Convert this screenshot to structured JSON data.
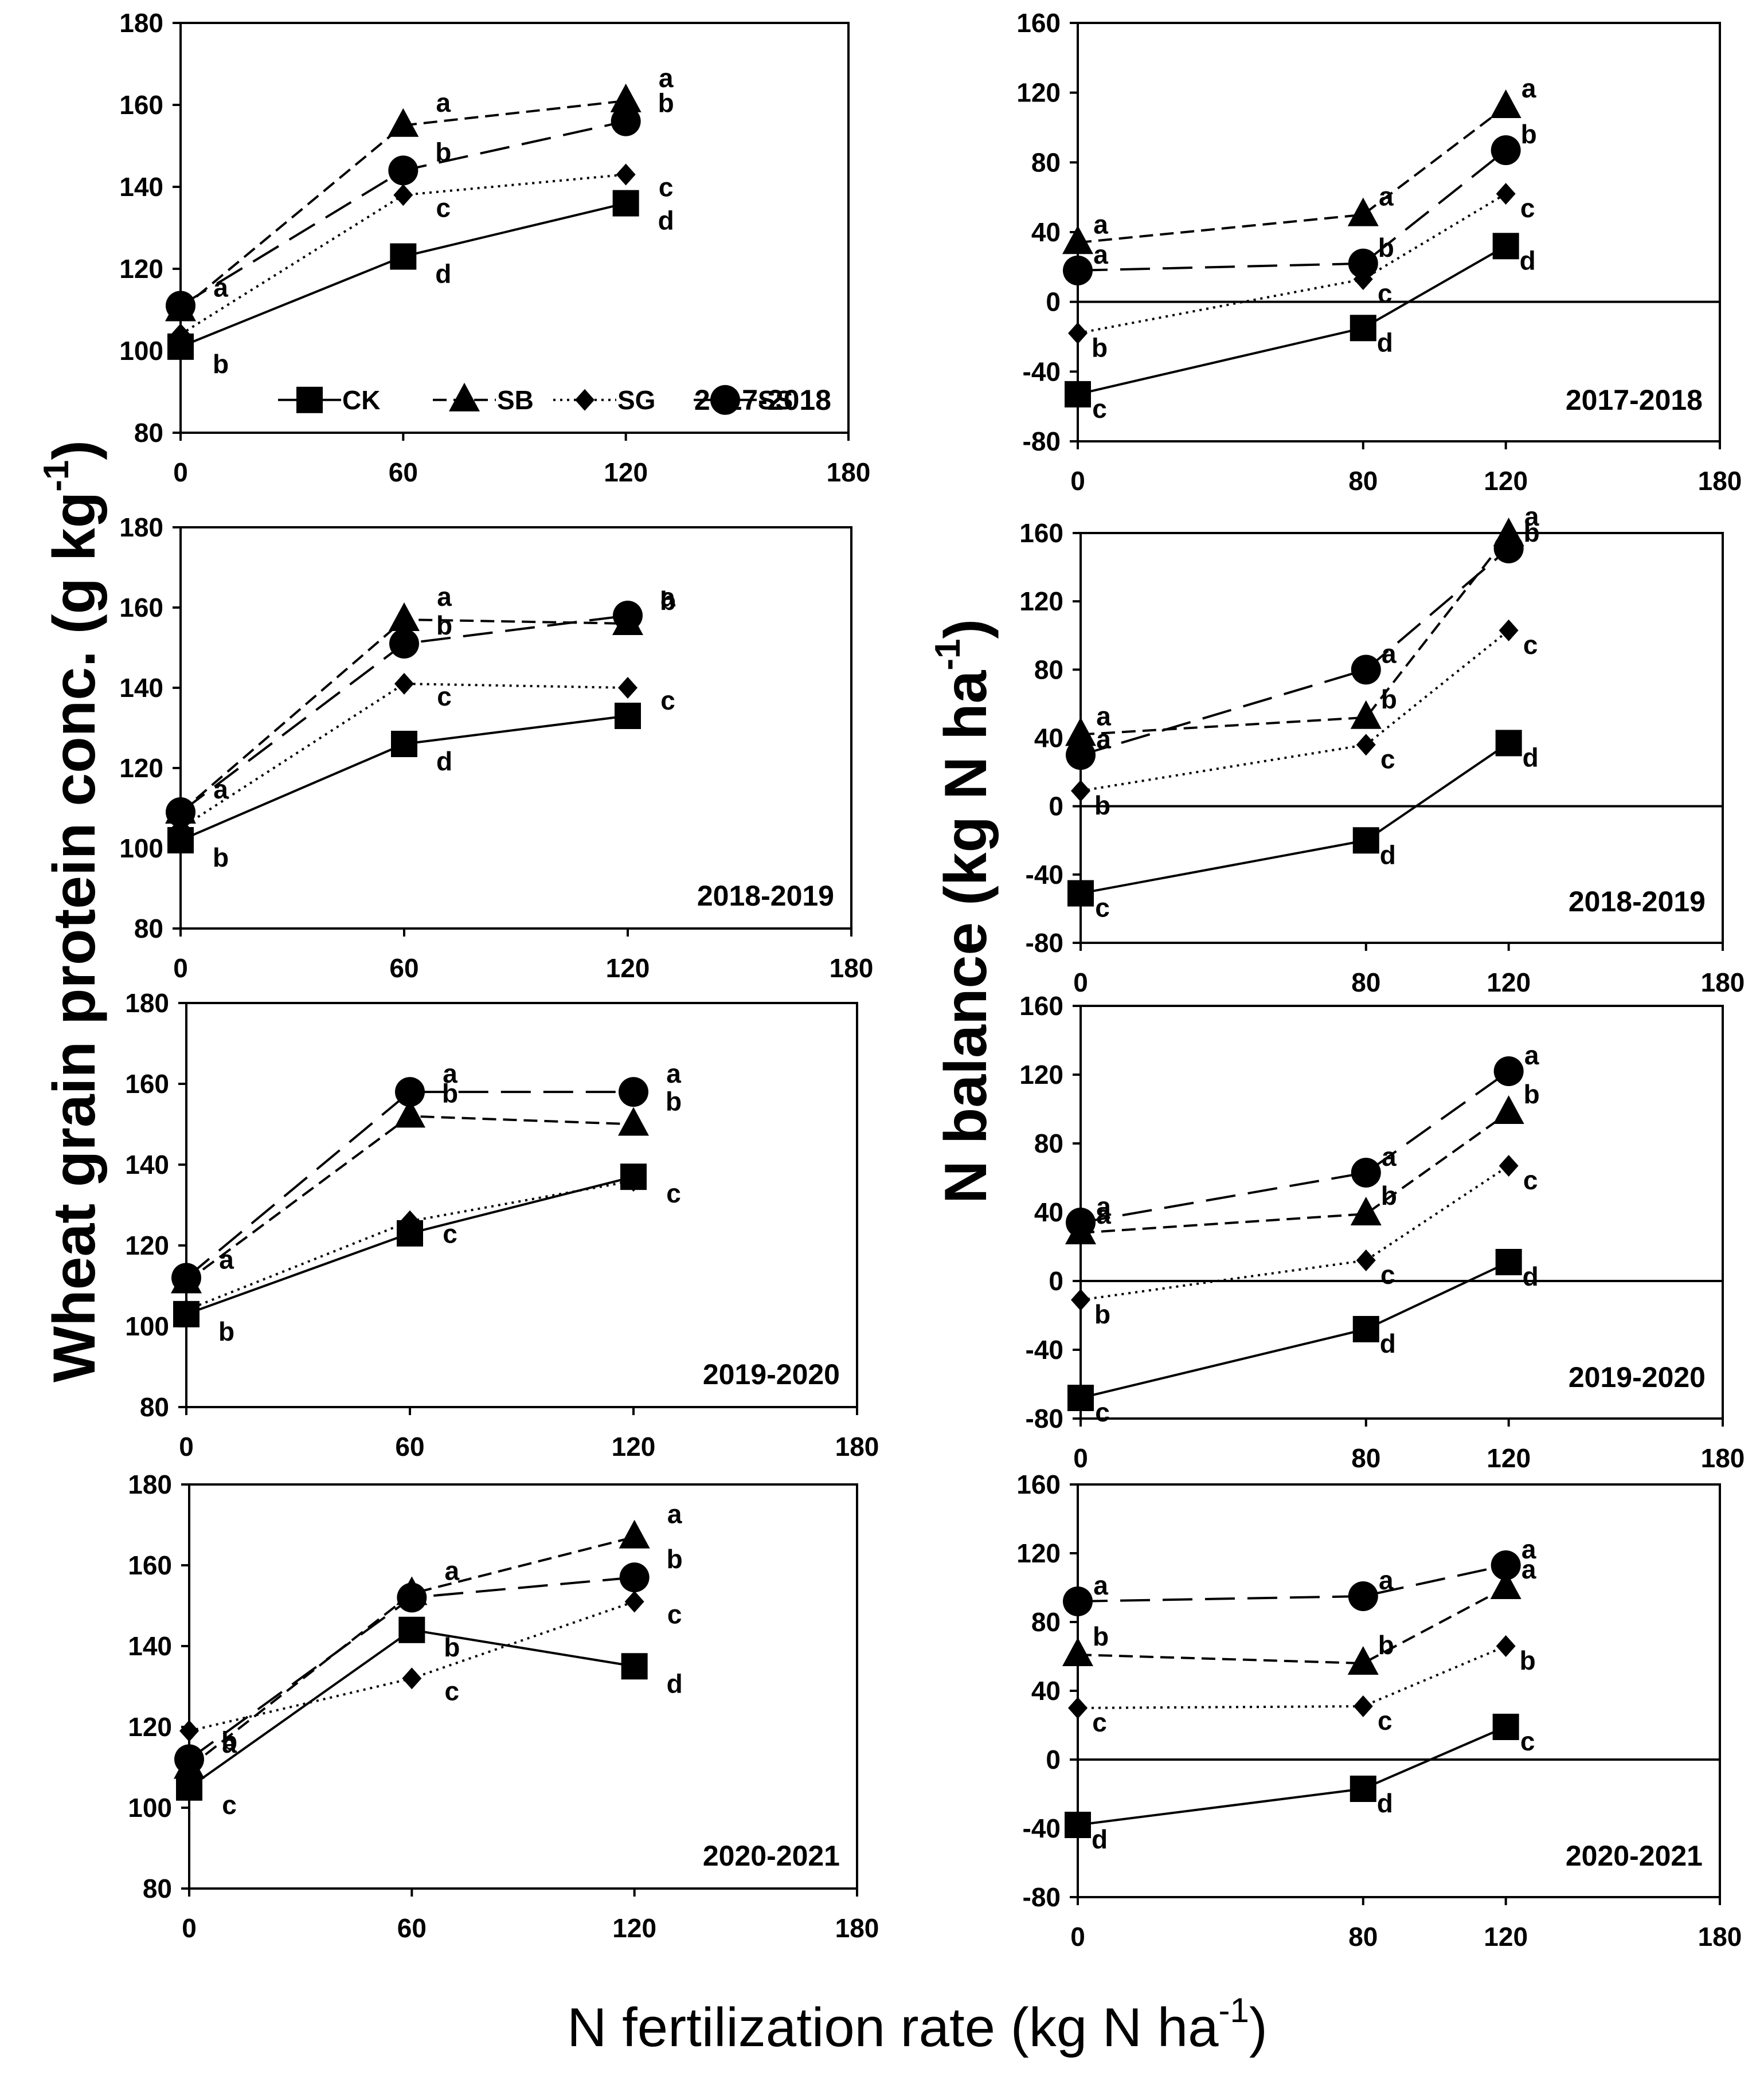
{
  "chart_data": {
    "type": "line",
    "ylabel_left": "Wheat grain protein conc. (g kg-1)",
    "ylabel_left_parts": {
      "main": "Wheat grain protein conc. (g kg",
      "sup": "-1",
      "end": ")"
    },
    "ylabel_right": "N balance (kg N ha-1)",
    "ylabel_right_parts": {
      "main": "N balance (kg N ha",
      "sup": "-1",
      "end": ")"
    },
    "xlabel": "N fertilization rate (kg N ha-1)",
    "xlabel_parts": {
      "main": "N fertilization rate (kg N ha",
      "sup": "-1",
      "end": ")"
    },
    "series_style": {
      "CK": {
        "marker": "square",
        "dash": "solid"
      },
      "SB": {
        "marker": "triangle",
        "dash": "short-dash"
      },
      "SG": {
        "marker": "diamond",
        "dash": "dotted"
      },
      "SS": {
        "marker": "circle",
        "dash": "long-dash"
      }
    },
    "legend": [
      "CK",
      "SB",
      "SG",
      "SS"
    ],
    "panels": [
      {
        "id": "protein-2017-2018",
        "year": "2017-2018",
        "kind": "protein",
        "x_ticks": [
          "0",
          "60",
          "120",
          "180"
        ],
        "x_tick_values": [
          0,
          60,
          120,
          180
        ],
        "xlim": [
          0,
          180
        ],
        "ylim": [
          80,
          180
        ],
        "y_ticks": [
          "80",
          "100",
          "120",
          "140",
          "160",
          "180"
        ],
        "x": [
          0,
          60,
          120
        ],
        "legend_shown": true,
        "series": [
          {
            "name": "CK",
            "values": [
              101,
              123,
              136
            ],
            "letters": [
              "b",
              "d",
              "d"
            ]
          },
          {
            "name": "SB",
            "values": [
              110,
              155,
              161
            ],
            "letters": [
              "",
              "a",
              "a"
            ]
          },
          {
            "name": "SG",
            "values": [
              104,
              138,
              143
            ],
            "letters": [
              "",
              "c",
              "c"
            ]
          },
          {
            "name": "SS",
            "values": [
              111,
              144,
              156
            ],
            "letters": [
              "a",
              "b",
              "b"
            ]
          }
        ]
      },
      {
        "id": "balance-2017-2018",
        "year": "2017-2018",
        "kind": "balance",
        "x_ticks": [
          "0",
          "80",
          "120",
          "180"
        ],
        "x_tick_values": [
          0,
          80,
          120,
          180
        ],
        "xlim": [
          0,
          180
        ],
        "ylim": [
          -80,
          160
        ],
        "y_ticks": [
          "-80",
          "-40",
          "0",
          "40",
          "80",
          "120",
          "160"
        ],
        "x": [
          0,
          80,
          120
        ],
        "series": [
          {
            "name": "CK",
            "values": [
              -53,
              -15,
              32
            ],
            "letters": [
              "c",
              "d",
              "d"
            ]
          },
          {
            "name": "SB",
            "values": [
              34,
              50,
              112
            ],
            "letters": [
              "a",
              "a",
              "a"
            ]
          },
          {
            "name": "SG",
            "values": [
              -18,
              13,
              62
            ],
            "letters": [
              "b",
              "c",
              "c"
            ]
          },
          {
            "name": "SS",
            "values": [
              18,
              22,
              87
            ],
            "letters": [
              "a",
              "b",
              "b"
            ]
          }
        ]
      },
      {
        "id": "protein-2018-2019",
        "year": "2018-2019",
        "kind": "protein",
        "x_ticks": [
          "0",
          "60",
          "120",
          "180"
        ],
        "x_tick_values": [
          0,
          60,
          120,
          180
        ],
        "xlim": [
          0,
          180
        ],
        "ylim": [
          80,
          180
        ],
        "y_ticks": [
          "80",
          "100",
          "120",
          "140",
          "160",
          "180"
        ],
        "x": [
          0,
          60,
          120
        ],
        "series": [
          {
            "name": "CK",
            "values": [
              102,
              126,
              133
            ],
            "letters": [
              "b",
              "d",
              ""
            ]
          },
          {
            "name": "SB",
            "values": [
              109,
              157,
              156
            ],
            "letters": [
              "a",
              "a",
              "b"
            ]
          },
          {
            "name": "SG",
            "values": [
              105,
              141,
              140
            ],
            "letters": [
              "",
              "c",
              "c"
            ]
          },
          {
            "name": "SS",
            "values": [
              109,
              151,
              158
            ],
            "letters": [
              "",
              "b",
              "a"
            ]
          }
        ]
      },
      {
        "id": "balance-2018-2019",
        "year": "2018-2019",
        "kind": "balance",
        "x_ticks": [
          "0",
          "80",
          "120",
          "180"
        ],
        "x_tick_values": [
          0,
          80,
          120,
          180
        ],
        "xlim": [
          0,
          180
        ],
        "ylim": [
          -80,
          160
        ],
        "y_ticks": [
          "-80",
          "-40",
          "0",
          "40",
          "80",
          "120",
          "160"
        ],
        "x": [
          0,
          80,
          120
        ],
        "series": [
          {
            "name": "CK",
            "values": [
              -51,
              -20,
              37
            ],
            "letters": [
              "c",
              "d",
              "d"
            ]
          },
          {
            "name": "SB",
            "values": [
              42,
              52,
              159
            ],
            "letters": [
              "a",
              "b",
              "a"
            ]
          },
          {
            "name": "SG",
            "values": [
              9,
              36,
              103
            ],
            "letters": [
              "b",
              "c",
              "c"
            ]
          },
          {
            "name": "SS",
            "values": [
              30,
              80,
              151
            ],
            "letters": [
              "a",
              "a",
              "b"
            ]
          }
        ]
      },
      {
        "id": "protein-2019-2020",
        "year": "2019-2020",
        "kind": "protein",
        "x_ticks": [
          "0",
          "60",
          "120",
          "180"
        ],
        "x_tick_values": [
          0,
          60,
          120,
          180
        ],
        "xlim": [
          0,
          180
        ],
        "ylim": [
          80,
          180
        ],
        "y_ticks": [
          "80",
          "100",
          "120",
          "140",
          "160",
          "180"
        ],
        "x": [
          0,
          60,
          120
        ],
        "series": [
          {
            "name": "CK",
            "values": [
              103,
              123,
              137
            ],
            "letters": [
              "b",
              "",
              ""
            ]
          },
          {
            "name": "SB",
            "values": [
              111,
              152,
              150
            ],
            "letters": [
              "",
              "b",
              "b"
            ]
          },
          {
            "name": "SG",
            "values": [
              104,
              126,
              136
            ],
            "letters": [
              "",
              "c",
              "c"
            ]
          },
          {
            "name": "SS",
            "values": [
              112,
              158,
              158
            ],
            "letters": [
              "a",
              "a",
              "a"
            ]
          }
        ]
      },
      {
        "id": "balance-2019-2020",
        "year": "2019-2020",
        "kind": "balance",
        "x_ticks": [
          "0",
          "80",
          "120",
          "180"
        ],
        "x_tick_values": [
          0,
          80,
          120,
          180
        ],
        "xlim": [
          0,
          180
        ],
        "ylim": [
          -80,
          160
        ],
        "y_ticks": [
          "-80",
          "-40",
          "0",
          "40",
          "80",
          "120",
          "160"
        ],
        "x": [
          0,
          80,
          120
        ],
        "series": [
          {
            "name": "CK",
            "values": [
              -68,
              -28,
              11
            ],
            "letters": [
              "c",
              "d",
              "d"
            ]
          },
          {
            "name": "SB",
            "values": [
              28,
              39,
              98
            ],
            "letters": [
              "a",
              "b",
              "b"
            ]
          },
          {
            "name": "SG",
            "values": [
              -11,
              12,
              67
            ],
            "letters": [
              "b",
              "c",
              "c"
            ]
          },
          {
            "name": "SS",
            "values": [
              34,
              63,
              122
            ],
            "letters": [
              "a",
              "a",
              "a"
            ]
          }
        ]
      },
      {
        "id": "protein-2020-2021",
        "year": "2020-2021",
        "kind": "protein",
        "x_ticks": [
          "0",
          "60",
          "120",
          "180"
        ],
        "x_tick_values": [
          0,
          60,
          120,
          180
        ],
        "xlim": [
          0,
          180
        ],
        "ylim": [
          80,
          180
        ],
        "y_ticks": [
          "80",
          "100",
          "120",
          "140",
          "160",
          "180"
        ],
        "x": [
          0,
          60,
          120
        ],
        "series": [
          {
            "name": "CK",
            "values": [
              105,
              144,
              135
            ],
            "letters": [
              "c",
              "b",
              "d"
            ]
          },
          {
            "name": "SB",
            "values": [
              110,
              153,
              167
            ],
            "letters": [
              "",
              "a",
              "a"
            ]
          },
          {
            "name": "SG",
            "values": [
              119,
              132,
              151
            ],
            "letters": [
              "a",
              "c",
              "c"
            ]
          },
          {
            "name": "SS",
            "values": [
              112,
              152,
              157
            ],
            "letters": [
              "b",
              "",
              "b"
            ]
          }
        ]
      },
      {
        "id": "balance-2020-2021",
        "year": "2020-2021",
        "kind": "balance",
        "x_ticks": [
          "0",
          "80",
          "120",
          "180"
        ],
        "x_tick_values": [
          0,
          80,
          120,
          180
        ],
        "xlim": [
          0,
          180
        ],
        "ylim": [
          -80,
          160
        ],
        "y_ticks": [
          "-80",
          "-40",
          "0",
          "40",
          "80",
          "120",
          "160"
        ],
        "x": [
          0,
          80,
          120
        ],
        "series": [
          {
            "name": "CK",
            "values": [
              -38,
              -17,
              19
            ],
            "letters": [
              "d",
              "d",
              "c"
            ]
          },
          {
            "name": "SB",
            "values": [
              61,
              56,
              100
            ],
            "letters": [
              "b",
              "b",
              "a"
            ]
          },
          {
            "name": "SG",
            "values": [
              30,
              31,
              66
            ],
            "letters": [
              "c",
              "c",
              "b"
            ]
          },
          {
            "name": "SS",
            "values": [
              92,
              95,
              113
            ],
            "letters": [
              "a",
              "a",
              "a"
            ]
          }
        ]
      }
    ]
  }
}
